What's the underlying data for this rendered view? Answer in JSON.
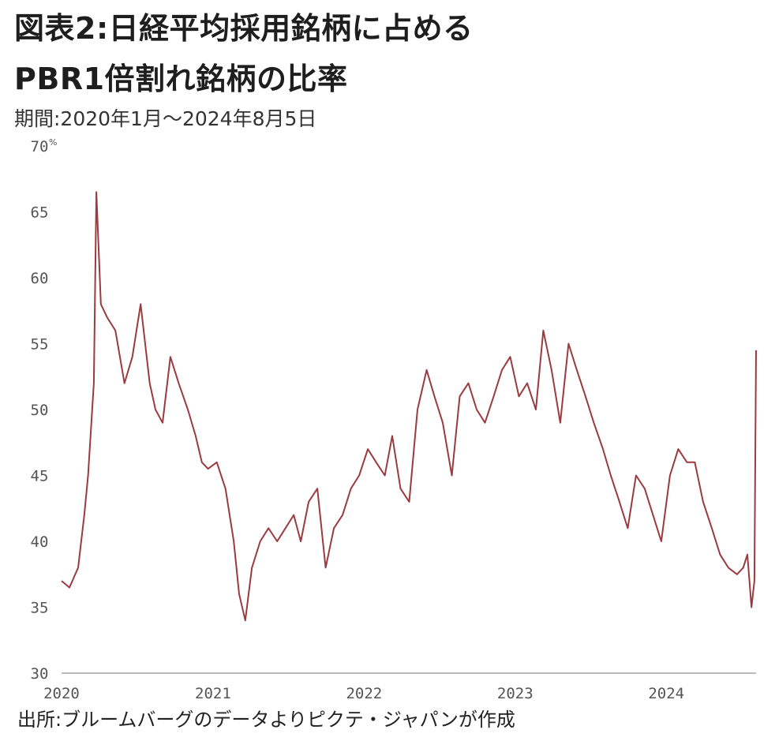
{
  "title_line1": "図表2:日経平均採用銘柄に占める",
  "title_line2": "PBR1倍割れ銘柄の比率",
  "period": "期間:2020年1月〜2024年8月5日",
  "source": "出所:ブルームバーグのデータよりピクテ・ジャパンが作成",
  "colors": {
    "line": "#9b3a3f",
    "axis": "#bbbbbb",
    "text": "#1e1e1e"
  },
  "chart_data": {
    "type": "line",
    "ylabel": "%",
    "ylim": [
      30,
      70
    ],
    "yticks": [
      "70",
      "65",
      "60",
      "55",
      "50",
      "45",
      "40",
      "35",
      "30"
    ],
    "xlim": [
      "2020-01-01",
      "2024-08-05"
    ],
    "xticks": [
      "2020",
      "2021",
      "2022",
      "2023",
      "2024"
    ],
    "grid": false,
    "series": [
      {
        "x": [
          "2020-01-01",
          "2020-01-20",
          "2020-02-10",
          "2020-02-25",
          "2020-03-05",
          "2020-03-19",
          "2020-03-25",
          "2020-04-05",
          "2020-04-20",
          "2020-05-10",
          "2020-06-01",
          "2020-06-20",
          "2020-07-10",
          "2020-08-01",
          "2020-08-15",
          "2020-09-01",
          "2020-09-20",
          "2020-10-10",
          "2020-11-01",
          "2020-11-20",
          "2020-12-05",
          "2020-12-20",
          "2021-01-10",
          "2021-01-31",
          "2021-02-20",
          "2021-03-05",
          "2021-03-20",
          "2021-04-05",
          "2021-04-25",
          "2021-05-15",
          "2021-06-05",
          "2021-06-25",
          "2021-07-15",
          "2021-08-01",
          "2021-08-20",
          "2021-09-10",
          "2021-09-30",
          "2021-10-20",
          "2021-11-10",
          "2021-11-30",
          "2021-12-20",
          "2022-01-10",
          "2022-01-30",
          "2022-02-20",
          "2022-03-10",
          "2022-03-30",
          "2022-04-20",
          "2022-05-10",
          "2022-06-01",
          "2022-06-20",
          "2022-07-10",
          "2022-08-01",
          "2022-08-20",
          "2022-09-10",
          "2022-09-30",
          "2022-10-20",
          "2022-11-10",
          "2022-11-30",
          "2022-12-20",
          "2023-01-10",
          "2023-01-30",
          "2023-02-20",
          "2023-03-10",
          "2023-03-30",
          "2023-04-20",
          "2023-05-10",
          "2023-05-30",
          "2023-06-20",
          "2023-07-10",
          "2023-08-01",
          "2023-08-20",
          "2023-09-10",
          "2023-09-30",
          "2023-10-20",
          "2023-11-10",
          "2023-11-30",
          "2023-12-20",
          "2024-01-10",
          "2024-01-30",
          "2024-02-20",
          "2024-03-10",
          "2024-03-30",
          "2024-04-20",
          "2024-05-10",
          "2024-05-30",
          "2024-06-20",
          "2024-07-05",
          "2024-07-15",
          "2024-07-25",
          "2024-08-01",
          "2024-08-05"
        ],
        "values": [
          37,
          36.5,
          38,
          42,
          45,
          52,
          66.5,
          58,
          57,
          56,
          52,
          54,
          58,
          52,
          50,
          49,
          54,
          52,
          50,
          48,
          46,
          45.5,
          46,
          44,
          40,
          36,
          34,
          38,
          40,
          41,
          40,
          41,
          42,
          40,
          43,
          44,
          38,
          41,
          42,
          44,
          45,
          47,
          46,
          45,
          48,
          44,
          43,
          50,
          53,
          51,
          49,
          45,
          51,
          52,
          50,
          49,
          51,
          53,
          54,
          51,
          52,
          50,
          56,
          53,
          49,
          55,
          53,
          51,
          49,
          47,
          45,
          43,
          41,
          45,
          44,
          42,
          40,
          45,
          47,
          46,
          46,
          43,
          41,
          39,
          38,
          37.5,
          38,
          39,
          35,
          37,
          54.5
        ]
      }
    ]
  }
}
